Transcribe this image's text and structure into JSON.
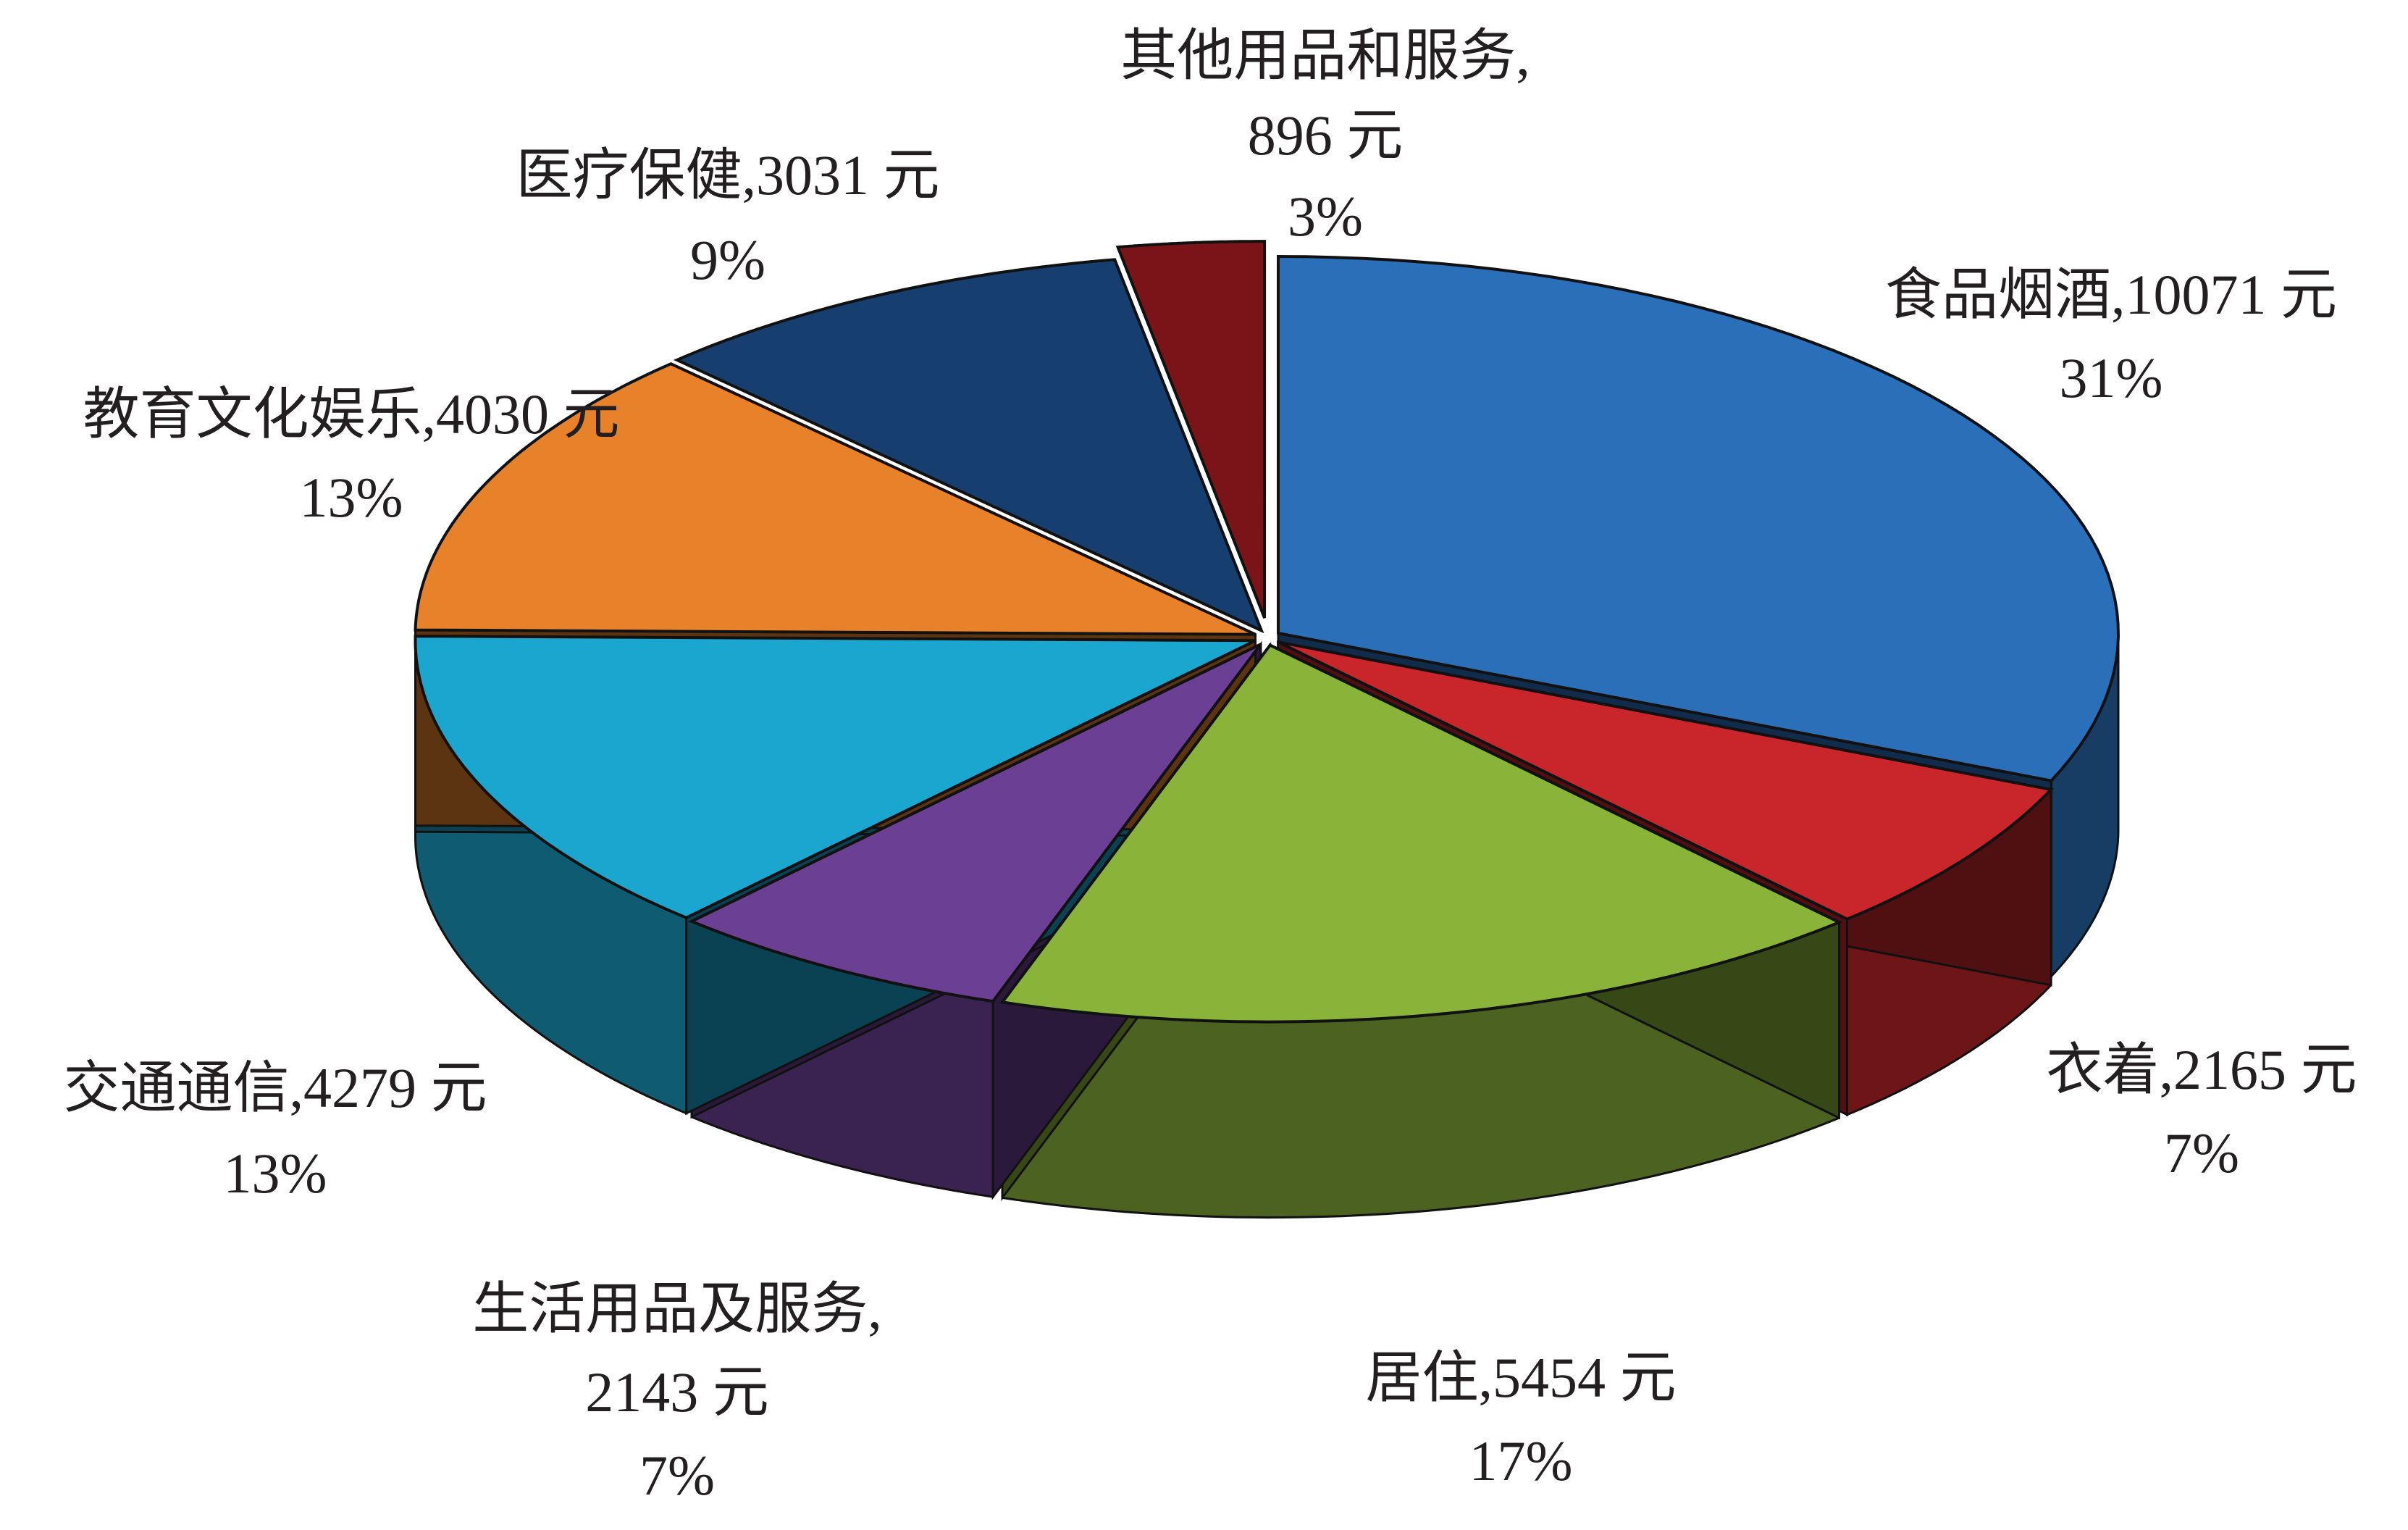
{
  "chart_data": {
    "type": "pie3d",
    "categories": [
      "食品烟酒,",
      "衣着,",
      "居住,",
      "生活用品及服务,",
      "交通通信,",
      "教育文化娱乐,",
      "医疗保健,",
      "其他用品和服务,"
    ],
    "values": [
      10071,
      2165,
      5454,
      2143,
      4279,
      4030,
      3031,
      896
    ],
    "value_labels": [
      "10071 元",
      "2165 元",
      "5454 元",
      "2143 元",
      "4279 元",
      "4030 元",
      "3031 元",
      "896 元"
    ],
    "percent_labels": [
      "31%",
      "7%",
      "17%",
      "7%",
      "13%",
      "13%",
      "9%",
      "3%"
    ],
    "colors": [
      "#2a6fb8",
      "#c8262a",
      "#8ab33a",
      "#6a3f94",
      "#1aa6cf",
      "#e8822a",
      "#163e6e",
      "#7a1418"
    ]
  }
}
